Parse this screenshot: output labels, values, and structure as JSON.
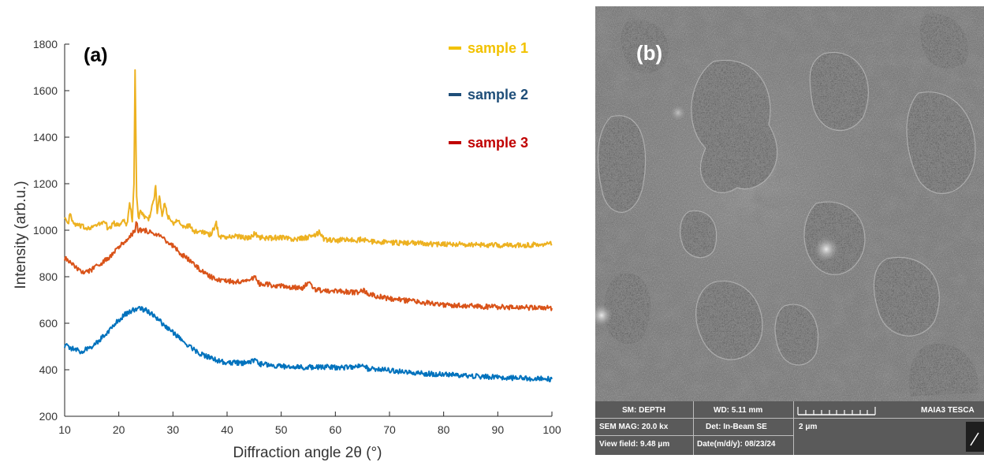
{
  "chart_data": {
    "type": "line",
    "panel_label": "(a)",
    "xlabel": "Diffraction angle 2θ (°)",
    "ylabel": "Intensity (arb.u.)",
    "xlim": [
      10,
      100
    ],
    "ylim": [
      200,
      1800
    ],
    "xticks": [
      10,
      20,
      30,
      40,
      50,
      60,
      70,
      80,
      90,
      100
    ],
    "yticks": [
      200,
      400,
      600,
      800,
      1000,
      1200,
      1400,
      1600,
      1800
    ],
    "legend_position": "top-right",
    "grid": false,
    "series": [
      {
        "name": "sample 1",
        "color": "#EDB120",
        "legend_color": "#F2C200",
        "points": [
          [
            10,
            1060
          ],
          [
            10.6,
            1020
          ],
          [
            11,
            1075
          ],
          [
            11.5,
            1030
          ],
          [
            12.5,
            1020
          ],
          [
            14,
            1010
          ],
          [
            16,
            1020
          ],
          [
            17.5,
            1040
          ],
          [
            18,
            1000
          ],
          [
            19,
            1030
          ],
          [
            20,
            1020
          ],
          [
            21,
            1050
          ],
          [
            21.5,
            1020
          ],
          [
            22,
            1120
          ],
          [
            22.5,
            1040
          ],
          [
            22.8,
            1200
          ],
          [
            23,
            1690
          ],
          [
            23.3,
            1150
          ],
          [
            23.6,
            1050
          ],
          [
            24,
            1080
          ],
          [
            24.5,
            1060
          ],
          [
            25,
            1050
          ],
          [
            25.5,
            1040
          ],
          [
            26,
            1090
          ],
          [
            26.5,
            1130
          ],
          [
            26.8,
            1200
          ],
          [
            27.1,
            1080
          ],
          [
            27.5,
            1140
          ],
          [
            28,
            1070
          ],
          [
            28.5,
            1120
          ],
          [
            29,
            1060
          ],
          [
            29.5,
            1050
          ],
          [
            30,
            1030
          ],
          [
            31,
            1050
          ],
          [
            32,
            1010
          ],
          [
            33,
            1020
          ],
          [
            34,
            990
          ],
          [
            35,
            1000
          ],
          [
            36,
            990
          ],
          [
            37,
            980
          ],
          [
            38,
            1030
          ],
          [
            38.5,
            975
          ],
          [
            40,
            970
          ],
          [
            42,
            975
          ],
          [
            44,
            965
          ],
          [
            45,
            985
          ],
          [
            46,
            970
          ],
          [
            48,
            965
          ],
          [
            50,
            970
          ],
          [
            52,
            960
          ],
          [
            54,
            965
          ],
          [
            56,
            975
          ],
          [
            57,
            990
          ],
          [
            58,
            960
          ],
          [
            60,
            955
          ],
          [
            62,
            960
          ],
          [
            64,
            955
          ],
          [
            65,
            965
          ],
          [
            66,
            950
          ],
          [
            68,
            950
          ],
          [
            70,
            948
          ],
          [
            72,
            945
          ],
          [
            74,
            945
          ],
          [
            76,
            945
          ],
          [
            78,
            940
          ],
          [
            80,
            942
          ],
          [
            82,
            940
          ],
          [
            84,
            938
          ],
          [
            86,
            938
          ],
          [
            88,
            937
          ],
          [
            90,
            935
          ],
          [
            92,
            936
          ],
          [
            94,
            935
          ],
          [
            96,
            936
          ],
          [
            98,
            940
          ],
          [
            99,
            945
          ],
          [
            100,
            940
          ]
        ]
      },
      {
        "name": "sample 2",
        "color": "#0072BD",
        "legend_color": "#1F4E79",
        "points": [
          [
            10,
            505
          ],
          [
            11,
            495
          ],
          [
            12,
            485
          ],
          [
            13,
            478
          ],
          [
            14,
            490
          ],
          [
            15,
            500
          ],
          [
            16,
            520
          ],
          [
            17,
            540
          ],
          [
            18,
            565
          ],
          [
            19,
            590
          ],
          [
            20,
            615
          ],
          [
            21,
            635
          ],
          [
            22,
            650
          ],
          [
            23,
            660
          ],
          [
            24,
            662
          ],
          [
            25,
            655
          ],
          [
            26,
            640
          ],
          [
            27,
            620
          ],
          [
            28,
            600
          ],
          [
            29,
            580
          ],
          [
            30,
            560
          ],
          [
            31,
            540
          ],
          [
            32,
            520
          ],
          [
            33,
            500
          ],
          [
            34,
            485
          ],
          [
            35,
            470
          ],
          [
            36,
            460
          ],
          [
            37,
            450
          ],
          [
            38,
            440
          ],
          [
            39,
            435
          ],
          [
            40,
            432
          ],
          [
            42,
            430
          ],
          [
            44,
            428
          ],
          [
            45,
            440
          ],
          [
            46,
            425
          ],
          [
            48,
            420
          ],
          [
            50,
            415
          ],
          [
            52,
            412
          ],
          [
            54,
            410
          ],
          [
            56,
            412
          ],
          [
            58,
            412
          ],
          [
            60,
            410
          ],
          [
            62,
            410
          ],
          [
            64,
            412
          ],
          [
            65,
            420
          ],
          [
            66,
            405
          ],
          [
            68,
            402
          ],
          [
            70,
            398
          ],
          [
            72,
            392
          ],
          [
            74,
            388
          ],
          [
            76,
            385
          ],
          [
            78,
            382
          ],
          [
            80,
            380
          ],
          [
            82,
            377
          ],
          [
            84,
            374
          ],
          [
            86,
            372
          ],
          [
            88,
            370
          ],
          [
            90,
            368
          ],
          [
            92,
            366
          ],
          [
            94,
            364
          ],
          [
            96,
            362
          ],
          [
            98,
            362
          ],
          [
            100,
            360
          ]
        ]
      },
      {
        "name": "sample 3",
        "color": "#D95319",
        "legend_color": "#C00000",
        "points": [
          [
            10,
            880
          ],
          [
            11,
            860
          ],
          [
            12,
            840
          ],
          [
            13,
            825
          ],
          [
            14,
            820
          ],
          [
            15,
            830
          ],
          [
            16,
            845
          ],
          [
            17,
            860
          ],
          [
            18,
            880
          ],
          [
            19,
            900
          ],
          [
            20,
            925
          ],
          [
            21,
            950
          ],
          [
            22,
            975
          ],
          [
            23,
            995
          ],
          [
            23.3,
            1040
          ],
          [
            23.6,
            990
          ],
          [
            24,
            1000
          ],
          [
            25,
            1000
          ],
          [
            26,
            990
          ],
          [
            27,
            980
          ],
          [
            28,
            965
          ],
          [
            29,
            950
          ],
          [
            30,
            935
          ],
          [
            31,
            910
          ],
          [
            32,
            890
          ],
          [
            33,
            870
          ],
          [
            34,
            850
          ],
          [
            35,
            830
          ],
          [
            36,
            815
          ],
          [
            37,
            800
          ],
          [
            38,
            790
          ],
          [
            39,
            785
          ],
          [
            40,
            780
          ],
          [
            42,
            780
          ],
          [
            44,
            780
          ],
          [
            45,
            800
          ],
          [
            46,
            770
          ],
          [
            48,
            765
          ],
          [
            50,
            760
          ],
          [
            52,
            755
          ],
          [
            54,
            750
          ],
          [
            55,
            775
          ],
          [
            56,
            745
          ],
          [
            58,
            740
          ],
          [
            60,
            738
          ],
          [
            62,
            735
          ],
          [
            64,
            732
          ],
          [
            65,
            745
          ],
          [
            66,
            725
          ],
          [
            68,
            715
          ],
          [
            70,
            705
          ],
          [
            72,
            700
          ],
          [
            74,
            695
          ],
          [
            76,
            690
          ],
          [
            78,
            685
          ],
          [
            80,
            680
          ],
          [
            82,
            678
          ],
          [
            84,
            675
          ],
          [
            86,
            673
          ],
          [
            88,
            671
          ],
          [
            90,
            670
          ],
          [
            92,
            669
          ],
          [
            94,
            668
          ],
          [
            96,
            667
          ],
          [
            98,
            666
          ],
          [
            100,
            665
          ]
        ]
      }
    ]
  },
  "sem": {
    "panel_label": "(b)",
    "info": {
      "sm": "SM: DEPTH",
      "wd": "WD: 5.11 mm",
      "brand": "MAIA3 TESCA",
      "mag": "SEM MAG: 20.0 kx",
      "det": "Det: In-Beam SE",
      "scale": "2 μm",
      "view_field": "View field: 9.48 μm",
      "date": "Date(m/d/y): 08/23/24"
    }
  }
}
